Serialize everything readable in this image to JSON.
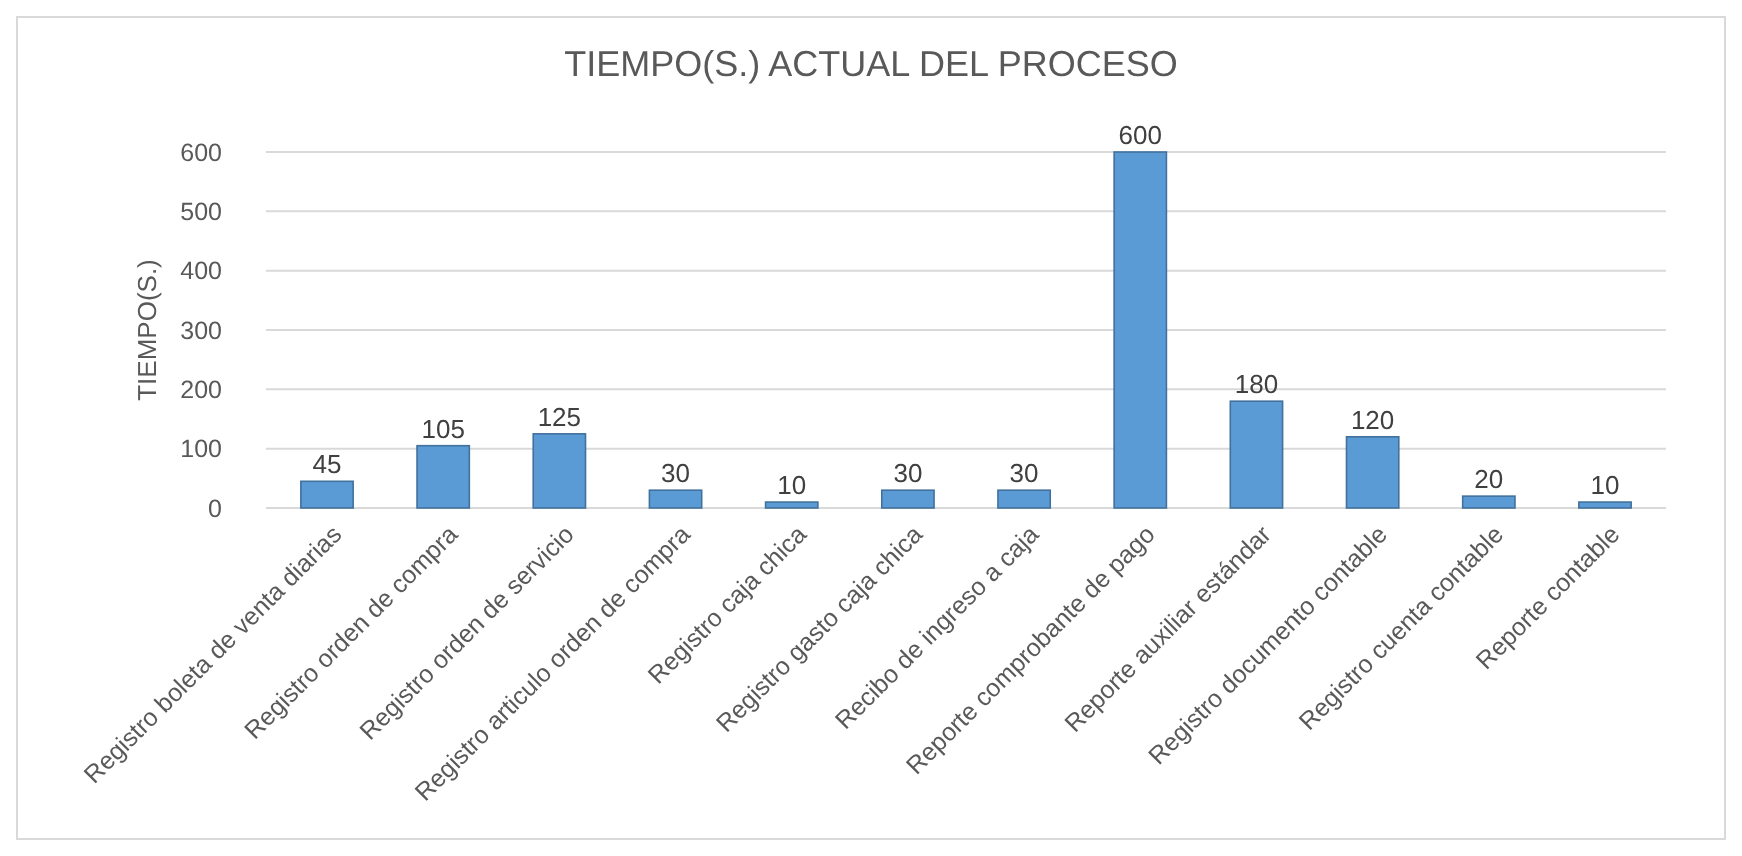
{
  "chart_data": {
    "type": "bar",
    "title": "TIEMPO(S.) ACTUAL DEL PROCESO",
    "ylabel": "TIEMPO(S.)",
    "categories": [
      "Registro boleta de venta diarias",
      "Registro orden de compra",
      "Registro orden de servicio",
      "Registro articulo orden de compra",
      "Registro caja chica",
      "Registro gasto caja chica",
      "Recibo de ingreso a caja",
      "Reporte comprobante de pago",
      "Reporte auxiliar estándar",
      "Registro documento contable",
      "Registro cuenta contable",
      "Reporte contable"
    ],
    "values": [
      45,
      105,
      125,
      30,
      10,
      30,
      30,
      600,
      180,
      120,
      20,
      10
    ],
    "color": "#5b9bd5",
    "ylim": [
      0,
      600
    ],
    "yticks": [
      0,
      100,
      200,
      300,
      400,
      500,
      600
    ],
    "grid": "y",
    "data_labels": true
  }
}
